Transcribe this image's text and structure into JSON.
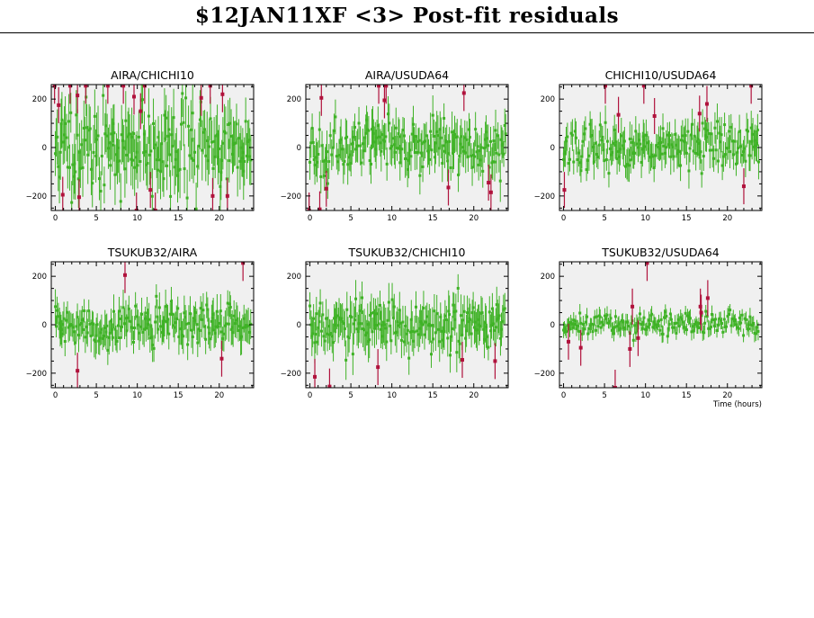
{
  "page": {
    "title": "$12JAN11XF <3> Post-fit residuals"
  },
  "colors": {
    "good": "#3fb226",
    "outlier": "#b0123c",
    "panel_bg": "#f0f0f0"
  },
  "chart_data": [
    {
      "type": "scatter",
      "title": "AIRA/CHICHI10",
      "xlabel": "",
      "ylabel": "",
      "xlim": [
        -0.5,
        24.2
      ],
      "ylim": [
        -260,
        260
      ],
      "xticks": [
        0,
        5,
        10,
        15,
        20
      ],
      "yticks": [
        -200,
        0,
        200
      ],
      "noise_sd": 90,
      "err": 100,
      "seed": 11,
      "outliers": [
        [
          -0.1,
          255
        ],
        [
          0.4,
          175
        ],
        [
          0.9,
          -195
        ],
        [
          1.8,
          255
        ],
        [
          2.7,
          215
        ],
        [
          2.9,
          -205
        ],
        [
          3.7,
          255
        ],
        [
          6.4,
          255
        ],
        [
          8.3,
          255
        ],
        [
          9.6,
          210
        ],
        [
          9.9,
          -260
        ],
        [
          10.4,
          150
        ],
        [
          10.9,
          255
        ],
        [
          11.6,
          -175
        ],
        [
          12.2,
          -260
        ],
        [
          17.8,
          205
        ],
        [
          18.9,
          255
        ],
        [
          19.2,
          -200
        ],
        [
          20.4,
          220
        ],
        [
          21.0,
          -200
        ]
      ]
    },
    {
      "type": "scatter",
      "title": "AIRA/USUDA64",
      "xlabel": "",
      "ylabel": "",
      "xlim": [
        -0.5,
        24.2
      ],
      "ylim": [
        -260,
        260
      ],
      "xticks": [
        0,
        5,
        10,
        15,
        20
      ],
      "yticks": [
        -200,
        0,
        200
      ],
      "noise_sd": 55,
      "err": 70,
      "seed": 23,
      "outliers": [
        [
          -0.1,
          -260
        ],
        [
          1.2,
          -255
        ],
        [
          1.4,
          205
        ],
        [
          2.0,
          -170
        ],
        [
          8.4,
          255
        ],
        [
          9.1,
          195
        ],
        [
          9.3,
          255
        ],
        [
          16.9,
          -165
        ],
        [
          18.8,
          225
        ],
        [
          21.8,
          -145
        ],
        [
          22.1,
          -185
        ]
      ]
    },
    {
      "type": "scatter",
      "title": "CHICHI10/USUDA64",
      "xlabel": "",
      "ylabel": "",
      "xlim": [
        -0.5,
        24.2
      ],
      "ylim": [
        -260,
        260
      ],
      "xticks": [
        0,
        5,
        10,
        15,
        20
      ],
      "yticks": [
        -200,
        0,
        200
      ],
      "noise_sd": 45,
      "err": 60,
      "seed": 37,
      "outliers": [
        [
          0.1,
          -175
        ],
        [
          5.1,
          255
        ],
        [
          6.7,
          135
        ],
        [
          9.8,
          255
        ],
        [
          11.1,
          130
        ],
        [
          16.6,
          140
        ],
        [
          17.5,
          180
        ],
        [
          22.0,
          -160
        ],
        [
          22.9,
          255
        ]
      ]
    },
    {
      "type": "scatter",
      "title": "TSUKUB32/AIRA",
      "xlabel": "",
      "ylabel": "",
      "xlim": [
        -0.5,
        24.2
      ],
      "ylim": [
        -260,
        260
      ],
      "xticks": [
        0,
        5,
        10,
        15,
        20
      ],
      "yticks": [
        -200,
        0,
        200
      ],
      "noise_sd": 45,
      "err": 60,
      "seed": 41,
      "outliers": [
        [
          2.7,
          -190
        ],
        [
          8.5,
          205
        ],
        [
          20.3,
          -140
        ],
        [
          22.9,
          255
        ]
      ]
    },
    {
      "type": "scatter",
      "title": "TSUKUB32/CHICHI10",
      "xlabel": "",
      "ylabel": "",
      "xlim": [
        -0.5,
        24.2
      ],
      "ylim": [
        -260,
        260
      ],
      "xticks": [
        0,
        5,
        10,
        15,
        20
      ],
      "yticks": [
        -200,
        0,
        200
      ],
      "noise_sd": 55,
      "err": 70,
      "seed": 53,
      "outliers": [
        [
          0.6,
          -215
        ],
        [
          2.4,
          -255
        ],
        [
          8.3,
          -175
        ],
        [
          18.6,
          -145
        ],
        [
          22.6,
          -150
        ]
      ]
    },
    {
      "type": "scatter",
      "title": "TSUKUB32/USUDA64",
      "xlabel": "Time (hours)",
      "ylabel": "",
      "xlim": [
        -0.5,
        24.2
      ],
      "ylim": [
        -260,
        260
      ],
      "xticks": [
        0,
        5,
        10,
        15,
        20
      ],
      "yticks": [
        -200,
        0,
        200
      ],
      "noise_sd": 22,
      "err": 30,
      "seed": 67,
      "outliers": [
        [
          0.6,
          -70
        ],
        [
          2.1,
          -95
        ],
        [
          6.3,
          -260
        ],
        [
          8.1,
          -100
        ],
        [
          8.4,
          75
        ],
        [
          9.1,
          -55
        ],
        [
          10.2,
          255
        ],
        [
          16.7,
          75
        ],
        [
          16.8,
          50
        ],
        [
          17.6,
          110
        ]
      ]
    }
  ]
}
